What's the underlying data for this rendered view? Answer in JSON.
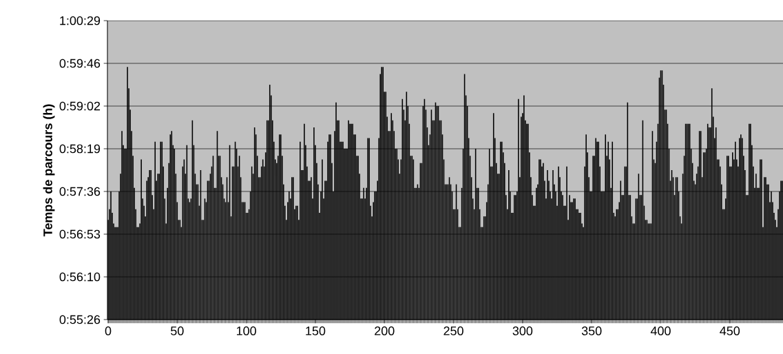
{
  "chart_data": {
    "type": "bar",
    "ylabel": "Temps de parcours (h)",
    "color": "#000000",
    "grid": "y",
    "ylim": [
      0.924,
      1.008
    ],
    "yticks": [
      {
        "value": 0.924,
        "label": "0:55:26"
      },
      {
        "value": 0.936,
        "label": "0:56:10"
      },
      {
        "value": 0.948,
        "label": "0:56:53"
      },
      {
        "value": 0.96,
        "label": "0:57:36"
      },
      {
        "value": 0.972,
        "label": "0:58:19"
      },
      {
        "value": 0.984,
        "label": "0:59:02"
      },
      {
        "value": 0.996,
        "label": "0:59:46"
      },
      {
        "value": 1.008,
        "label": "1:00:29"
      }
    ],
    "categories": [
      "0",
      null,
      null,
      null,
      null,
      null,
      null,
      null,
      null,
      null,
      null,
      null,
      null,
      null,
      null,
      null,
      null,
      null,
      null,
      null,
      null,
      null,
      null,
      null,
      null,
      null,
      null,
      null,
      null,
      null,
      null,
      null,
      null,
      null,
      null,
      null,
      null,
      null,
      null,
      null,
      null,
      null,
      null,
      null,
      null,
      null,
      null,
      null,
      null,
      null,
      "50",
      null,
      null,
      null,
      null,
      null,
      null,
      null,
      null,
      null,
      null,
      null,
      null,
      null,
      null,
      null,
      null,
      null,
      null,
      null,
      null,
      null,
      null,
      null,
      null,
      null,
      null,
      null,
      null,
      null,
      null,
      null,
      null,
      null,
      null,
      null,
      null,
      null,
      null,
      null,
      null,
      null,
      null,
      null,
      null,
      null,
      null,
      null,
      null,
      null,
      "100",
      null,
      null,
      null,
      null,
      null,
      null,
      null,
      null,
      null,
      null,
      null,
      null,
      null,
      null,
      null,
      null,
      null,
      null,
      null,
      null,
      null,
      null,
      null,
      null,
      null,
      null,
      null,
      null,
      null,
      null,
      null,
      null,
      null,
      null,
      null,
      null,
      null,
      null,
      null,
      null,
      null,
      null,
      null,
      null,
      null,
      null,
      null,
      null,
      null,
      "150",
      null,
      null,
      null,
      null,
      null,
      null,
      null,
      null,
      null,
      null,
      null,
      null,
      null,
      null,
      null,
      null,
      null,
      null,
      null,
      null,
      null,
      null,
      null,
      null,
      null,
      null,
      null,
      null,
      null,
      null,
      null,
      null,
      null,
      null,
      null,
      null,
      null,
      null,
      null,
      null,
      null,
      null,
      null,
      null,
      null,
      null,
      null,
      null,
      null,
      "200",
      null,
      null,
      null,
      null,
      null,
      null,
      null,
      null,
      null,
      null,
      null,
      null,
      null,
      null,
      null,
      null,
      null,
      null,
      null,
      null,
      null,
      null,
      null,
      null,
      null,
      null,
      null,
      null,
      null,
      null,
      null,
      null,
      null,
      null,
      null,
      null,
      null,
      null,
      null,
      null,
      null,
      null,
      null,
      null,
      null,
      null,
      null,
      null,
      null,
      "250",
      null,
      null,
      null,
      null,
      null,
      null,
      null,
      null,
      null,
      null,
      null,
      null,
      null,
      null,
      null,
      null,
      null,
      null,
      null,
      null,
      null,
      null,
      null,
      null,
      null,
      null,
      null,
      null,
      null,
      null,
      null,
      null,
      null,
      null,
      null,
      null,
      null,
      null,
      null,
      null,
      null,
      null,
      null,
      null,
      null,
      null,
      null,
      null,
      null,
      "300",
      null,
      null,
      null,
      null,
      null,
      null,
      null,
      null,
      null,
      null,
      null,
      null,
      null,
      null,
      null,
      null,
      null,
      null,
      null,
      null,
      null,
      null,
      null,
      null,
      null,
      null,
      null,
      null,
      null,
      null,
      null,
      null,
      null,
      null,
      null,
      null,
      null,
      null,
      null,
      null,
      null,
      null,
      null,
      null,
      null,
      null,
      null,
      null,
      null,
      "350",
      null,
      null,
      null,
      null,
      null,
      null,
      null,
      null,
      null,
      null,
      null,
      null,
      null,
      null,
      null,
      null,
      null,
      null,
      null,
      null,
      null,
      null,
      null,
      null,
      null,
      null,
      null,
      null,
      null,
      null,
      null,
      null,
      null,
      null,
      null,
      null,
      null,
      null,
      null,
      null,
      null,
      null,
      null,
      null,
      null,
      null,
      null,
      null,
      null,
      "400",
      null,
      null,
      null,
      null,
      null,
      null,
      null,
      null,
      null,
      null,
      null,
      null,
      null,
      null,
      null,
      null,
      null,
      null,
      null,
      null,
      null,
      null,
      null,
      null,
      null,
      null,
      null,
      null,
      null,
      null,
      null,
      null,
      null,
      null,
      null,
      null,
      null,
      null,
      null,
      null,
      null,
      null,
      null,
      null,
      null,
      null,
      null,
      null,
      null,
      "450",
      null,
      null,
      null,
      null,
      null,
      null,
      null,
      null,
      null,
      null,
      null,
      null,
      null,
      null,
      null,
      null,
      null,
      null,
      null,
      null,
      null,
      null,
      null,
      null,
      null,
      null,
      null,
      null,
      null,
      null,
      null,
      null,
      null,
      null,
      null,
      null,
      null,
      null
    ],
    "values": [
      0.952,
      0.955,
      0.96,
      0.954,
      0.951,
      0.95,
      0.95,
      0.95,
      0.96,
      0.965,
      0.977,
      0.973,
      0.972,
      0.972,
      0.995,
      0.989,
      0.983,
      0.977,
      0.97,
      0.961,
      0.955,
      0.95,
      0.95,
      0.951,
      0.969,
      0.958,
      0.956,
      0.953,
      0.963,
      0.964,
      0.966,
      0.966,
      0.959,
      0.955,
      0.974,
      0.963,
      0.965,
      0.965,
      0.974,
      0.974,
      0.967,
      0.958,
      0.951,
      0.961,
      0.968,
      0.976,
      0.977,
      0.973,
      0.972,
      0.965,
      0.957,
      0.952,
      0.952,
      0.95,
      0.967,
      0.969,
      0.965,
      0.973,
      0.958,
      0.957,
      0.958,
      0.98,
      0.973,
      0.965,
      0.962,
      0.962,
      0.956,
      0.966,
      0.952,
      0.952,
      0.958,
      0.957,
      0.963,
      0.963,
      0.965,
      0.967,
      0.97,
      0.961,
      0.961,
      0.977,
      0.97,
      0.97,
      0.964,
      0.962,
      0.958,
      0.957,
      0.964,
      0.957,
      0.973,
      0.953,
      0.967,
      0.967,
      0.974,
      0.972,
      0.967,
      0.97,
      0.964,
      0.957,
      0.957,
      0.957,
      0.954,
      0.954,
      0.955,
      0.96,
      0.967,
      0.965,
      0.978,
      0.976,
      0.97,
      0.964,
      0.964,
      0.967,
      0.969,
      0.967,
      0.971,
      0.98,
      0.98,
      0.99,
      0.987,
      0.98,
      0.974,
      0.969,
      0.968,
      0.97,
      0.976,
      0.976,
      0.97,
      0.962,
      0.956,
      0.952,
      0.957,
      0.96,
      0.958,
      0.964,
      0.964,
      0.955,
      0.956,
      0.956,
      0.952,
      0.974,
      0.966,
      0.966,
      0.979,
      0.973,
      0.967,
      0.963,
      0.963,
      0.964,
      0.958,
      0.978,
      0.973,
      0.968,
      0.962,
      0.954,
      0.96,
      0.969,
      0.958,
      0.963,
      0.963,
      0.974,
      0.976,
      0.976,
      0.968,
      0.96,
      0.977,
      0.985,
      0.98,
      0.98,
      0.974,
      0.974,
      0.974,
      0.972,
      0.972,
      0.972,
      0.98,
      0.979,
      0.979,
      0.979,
      0.976,
      0.976,
      0.97,
      0.97,
      0.965,
      0.958,
      0.958,
      0.961,
      0.958,
      0.961,
      0.975,
      0.975,
      0.956,
      0.953,
      0.957,
      0.96,
      0.96,
      0.963,
      0.975,
      0.993,
      0.995,
      0.995,
      0.988,
      0.988,
      0.981,
      0.977,
      0.977,
      0.982,
      0.98,
      0.977,
      0.972,
      0.972,
      0.969,
      0.965,
      0.969,
      0.986,
      0.983,
      0.98,
      0.988,
      0.984,
      0.979,
      0.97,
      0.97,
      0.969,
      0.961,
      0.961,
      0.962,
      0.961,
      0.968,
      0.968,
      0.984,
      0.986,
      0.983,
      0.978,
      0.973,
      0.976,
      0.983,
      0.98,
      0.98,
      0.985,
      0.984,
      0.984,
      0.98,
      0.98,
      0.976,
      0.969,
      0.962,
      0.962,
      0.962,
      0.964,
      0.962,
      0.96,
      0.955,
      0.955,
      0.962,
      0.955,
      0.95,
      0.95,
      0.961,
      0.972,
      0.993,
      0.987,
      0.984,
      0.975,
      0.97,
      0.964,
      0.958,
      0.955,
      0.972,
      0.961,
      0.961,
      0.955,
      0.95,
      0.95,
      0.953,
      0.953,
      0.957,
      0.962,
      0.972,
      0.967,
      0.967,
      0.982,
      0.975,
      0.968,
      0.965,
      0.965,
      0.974,
      0.974,
      0.971,
      0.968,
      0.959,
      0.955,
      0.966,
      0.96,
      0.954,
      0.954,
      0.959,
      0.959,
      0.96,
      0.986,
      0.964,
      0.981,
      0.982,
      0.987,
      0.98,
      0.979,
      0.979,
      0.971,
      0.964,
      0.959,
      0.956,
      0.956,
      0.961,
      0.962,
      0.969,
      0.969,
      0.967,
      0.968,
      0.963,
      0.958,
      0.966,
      0.963,
      0.96,
      0.958,
      0.966,
      0.962,
      0.96,
      0.956,
      0.967,
      0.964,
      0.96,
      0.959,
      0.956,
      0.956,
      0.967,
      0.952,
      0.959,
      0.957,
      0.957,
      0.958,
      0.958,
      0.955,
      0.955,
      0.954,
      0.954,
      0.951,
      0.95,
      0.967,
      0.976,
      0.971,
      0.964,
      0.96,
      0.96,
      0.97,
      0.97,
      0.975,
      0.974,
      0.974,
      0.967,
      0.96,
      0.96,
      0.96,
      0.976,
      0.97,
      0.974,
      0.969,
      0.961,
      0.974,
      0.954,
      0.953,
      0.955,
      0.955,
      0.957,
      0.963,
      0.959,
      0.959,
      0.967,
      0.967,
      0.985,
      0.959,
      0.959,
      0.953,
      0.951,
      0.951,
      0.958,
      0.958,
      0.965,
      0.959,
      0.959,
      0.98,
      0.956,
      0.952,
      0.952,
      0.951,
      0.951,
      0.951,
      0.977,
      0.969,
      0.968,
      0.974,
      0.979,
      0.992,
      0.994,
      0.994,
      0.99,
      0.983,
      0.983,
      0.979,
      0.972,
      0.963,
      0.966,
      0.964,
      0.959,
      0.964,
      0.964,
      0.96,
      0.953,
      0.951,
      0.965,
      0.97,
      0.979,
      0.979,
      0.979,
      0.979,
      0.972,
      0.968,
      0.963,
      0.962,
      0.965,
      0.967,
      0.977,
      0.977,
      0.964,
      0.971,
      0.971,
      0.972,
      0.979,
      0.978,
      0.978,
      0.989,
      0.981,
      0.975,
      0.978,
      0.969,
      0.969,
      0.967,
      0.962,
      0.955,
      0.955,
      0.958,
      0.97,
      0.97,
      0.967,
      0.967,
      0.971,
      0.969,
      0.974,
      0.969,
      0.967,
      0.975,
      0.976,
      0.975,
      0.97,
      0.966,
      0.959,
      0.959,
      0.979,
      0.979,
      0.973,
      0.967,
      0.961,
      0.965,
      0.961,
      0.961,
      0.969,
      0.969,
      0.95,
      0.964,
      0.964,
      0.962,
      0.962,
      0.957,
      0.96,
      0.957,
      0.954,
      0.952,
      0.95,
      0.955,
      0.96,
      0.963,
      0.963
    ]
  }
}
